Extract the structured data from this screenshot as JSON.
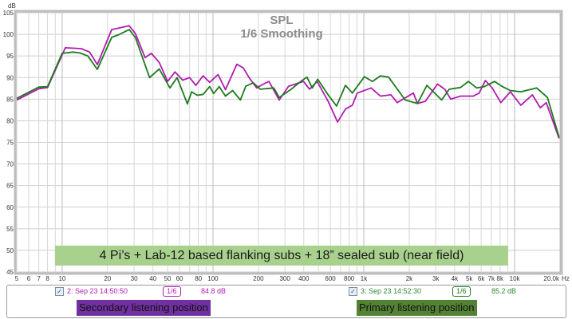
{
  "chart_data": {
    "type": "line",
    "title": "SPL",
    "subtitle": "1/6 Smoothing",
    "ylabel": "dB",
    "xlabel": "Hz",
    "xscale": "log",
    "xlim": [
      5,
      20000
    ],
    "ylim": [
      45,
      105
    ],
    "grid": true,
    "yticks": [
      45,
      50,
      55,
      60,
      65,
      70,
      75,
      80,
      85,
      90,
      95,
      100,
      105
    ],
    "xticks": [
      {
        "v": 5,
        "label": "5"
      },
      {
        "v": 6,
        "label": "6"
      },
      {
        "v": 7,
        "label": "7"
      },
      {
        "v": 8,
        "label": "8"
      },
      {
        "v": 10,
        "label": "10"
      },
      {
        "v": 20,
        "label": "20"
      },
      {
        "v": 30,
        "label": "30"
      },
      {
        "v": 40,
        "label": "40"
      },
      {
        "v": 50,
        "label": "50"
      },
      {
        "v": 60,
        "label": "60"
      },
      {
        "v": 80,
        "label": "80"
      },
      {
        "v": 100,
        "label": "100"
      },
      {
        "v": 200,
        "label": "200"
      },
      {
        "v": 300,
        "label": "300"
      },
      {
        "v": 400,
        "label": "400"
      },
      {
        "v": 600,
        "label": "600"
      },
      {
        "v": 800,
        "label": "800"
      },
      {
        "v": 1000,
        "label": "1k"
      },
      {
        "v": 2000,
        "label": "2k"
      },
      {
        "v": 3000,
        "label": "3k"
      },
      {
        "v": 4000,
        "label": "4k"
      },
      {
        "v": 5000,
        "label": "5k"
      },
      {
        "v": 6000,
        "label": "6k"
      },
      {
        "v": 7000,
        "label": "7k"
      },
      {
        "v": 8000,
        "label": "8k"
      },
      {
        "v": 10000,
        "label": "10k"
      },
      {
        "v": 20000,
        "label": "20.0k"
      }
    ],
    "annotation": "4 Pi’s + Lab-12 based flanking subs + 18” sealed sub (near field)",
    "series": [
      {
        "name": "2: Sep 23 14:50:50",
        "label": "Secondary listening position",
        "smoothing": "1/6",
        "level": "84.8 dB",
        "color": "#b01cb0",
        "label_bg": "#7030a0",
        "points": [
          [
            5,
            84.8
          ],
          [
            7,
            87.4
          ],
          [
            8,
            87.7
          ],
          [
            10.5,
            96.9
          ],
          [
            13.4,
            96.7
          ],
          [
            15.2,
            95.9
          ],
          [
            17.1,
            93
          ],
          [
            21.3,
            101.1
          ],
          [
            24,
            101.5
          ],
          [
            27.8,
            102
          ],
          [
            30.6,
            100.2
          ],
          [
            35.5,
            94.6
          ],
          [
            39,
            95.6
          ],
          [
            44,
            93.5
          ],
          [
            50,
            89.1
          ],
          [
            56,
            91.3
          ],
          [
            63,
            89.4
          ],
          [
            70,
            90
          ],
          [
            77,
            88.2
          ],
          [
            86,
            90.4
          ],
          [
            95,
            88.9
          ],
          [
            108,
            90.7
          ],
          [
            121,
            87.2
          ],
          [
            144,
            93.1
          ],
          [
            159,
            92.2
          ],
          [
            175,
            89.8
          ],
          [
            195,
            87.6
          ],
          [
            216,
            88.5
          ],
          [
            235,
            89.1
          ],
          [
            275,
            84.8
          ],
          [
            317,
            88
          ],
          [
            398,
            89.1
          ],
          [
            437,
            87.3
          ],
          [
            490,
            89.1
          ],
          [
            580,
            84.5
          ],
          [
            670,
            79.7
          ],
          [
            755,
            82.7
          ],
          [
            840,
            83.6
          ],
          [
            905,
            86.4
          ],
          [
            1120,
            87.6
          ],
          [
            1290,
            85.7
          ],
          [
            1515,
            86
          ],
          [
            1665,
            84.2
          ],
          [
            2130,
            86.4
          ],
          [
            2270,
            84
          ],
          [
            2560,
            84.5
          ],
          [
            3080,
            88.5
          ],
          [
            3440,
            87.3
          ],
          [
            3770,
            85
          ],
          [
            4380,
            85.7
          ],
          [
            5320,
            85.7
          ],
          [
            5820,
            86.4
          ],
          [
            6400,
            89.3
          ],
          [
            7100,
            87.6
          ],
          [
            8100,
            84.2
          ],
          [
            9360,
            86.7
          ],
          [
            11000,
            83.6
          ],
          [
            13100,
            86
          ],
          [
            14800,
            83
          ],
          [
            16200,
            84.2
          ],
          [
            19700,
            75.9
          ]
        ]
      },
      {
        "name": "3: Sep 23 14:52:30",
        "label": "Primary listening position",
        "smoothing": "1/6",
        "level": "85.2 dB",
        "color": "#1f7a1f",
        "label_bg": "#548235",
        "points": [
          [
            5,
            85.2
          ],
          [
            7,
            87.8
          ],
          [
            8,
            87.9
          ],
          [
            10,
            95.6
          ],
          [
            11.8,
            95.9
          ],
          [
            13.1,
            95.7
          ],
          [
            14.8,
            95
          ],
          [
            17.1,
            91.9
          ],
          [
            21.3,
            99.3
          ],
          [
            24,
            100
          ],
          [
            27.8,
            101.1
          ],
          [
            30.6,
            99.3
          ],
          [
            38,
            90
          ],
          [
            44,
            92
          ],
          [
            51.8,
            87.6
          ],
          [
            57.8,
            90
          ],
          [
            67.7,
            83.9
          ],
          [
            72.2,
            86.7
          ],
          [
            78.7,
            85.9
          ],
          [
            86,
            86.1
          ],
          [
            95,
            87.9
          ],
          [
            101,
            86.3
          ],
          [
            110,
            87.9
          ],
          [
            121,
            85.7
          ],
          [
            135,
            87
          ],
          [
            152,
            84.8
          ],
          [
            165,
            88
          ],
          [
            185,
            88.8
          ],
          [
            206,
            87.3
          ],
          [
            253,
            87.6
          ],
          [
            275,
            85.4
          ],
          [
            330,
            87.3
          ],
          [
            382,
            89.1
          ],
          [
            420,
            90.1
          ],
          [
            455,
            87.6
          ],
          [
            495,
            89.6
          ],
          [
            580,
            86
          ],
          [
            660,
            83.4
          ],
          [
            755,
            88.2
          ],
          [
            840,
            86.4
          ],
          [
            1010,
            90.2
          ],
          [
            1140,
            89.1
          ],
          [
            1290,
            90.4
          ],
          [
            1460,
            90.1
          ],
          [
            1880,
            84.8
          ],
          [
            2270,
            84
          ],
          [
            2620,
            88.2
          ],
          [
            3280,
            84.8
          ],
          [
            3680,
            87.3
          ],
          [
            4380,
            87.7
          ],
          [
            4940,
            89.1
          ],
          [
            5600,
            87.6
          ],
          [
            6300,
            87.9
          ],
          [
            7360,
            89.1
          ],
          [
            8300,
            87.9
          ],
          [
            9360,
            87
          ],
          [
            11000,
            86.7
          ],
          [
            14000,
            87.6
          ],
          [
            16500,
            85.4
          ],
          [
            19700,
            76.2
          ]
        ]
      }
    ]
  }
}
